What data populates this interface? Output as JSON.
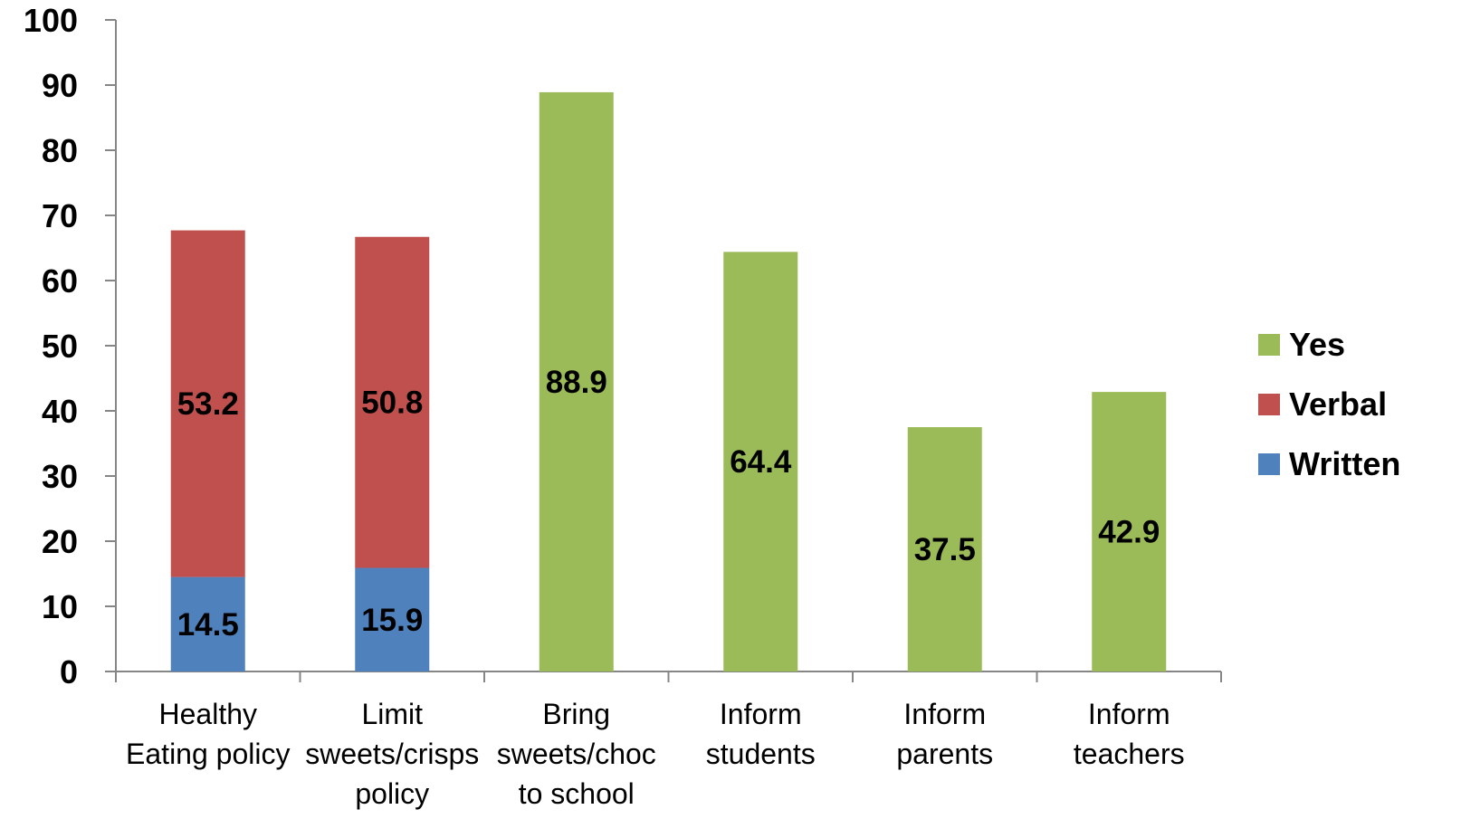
{
  "chart_data": {
    "type": "bar",
    "stacked": true,
    "categories": [
      [
        "Healthy",
        "Eating policy"
      ],
      [
        "Limit",
        "sweets/crisps",
        "policy"
      ],
      [
        "Bring",
        "sweets/choc",
        "to school"
      ],
      [
        "Inform",
        "students"
      ],
      [
        "Inform",
        "parents"
      ],
      [
        "Inform",
        "teachers"
      ]
    ],
    "series": [
      {
        "name": "Written",
        "color": "#4F81BD",
        "values": [
          14.5,
          15.9,
          null,
          null,
          null,
          null
        ]
      },
      {
        "name": "Verbal",
        "color": "#C0504D",
        "values": [
          53.2,
          50.8,
          null,
          null,
          null,
          null
        ]
      },
      {
        "name": "Yes",
        "color": "#9BBB59",
        "values": [
          null,
          null,
          88.9,
          64.4,
          37.5,
          42.9
        ]
      }
    ],
    "data_labels": [
      [
        "14.5",
        "15.9",
        "",
        "",
        "",
        ""
      ],
      [
        "53.2",
        "50.8",
        "",
        "",
        "",
        ""
      ],
      [
        "",
        "",
        "88.9",
        "64.4",
        "37.5",
        "42.9"
      ]
    ],
    "ylim": [
      0,
      100
    ],
    "yticks": [
      0,
      10,
      20,
      30,
      40,
      50,
      60,
      70,
      80,
      90,
      100
    ],
    "legend": {
      "position": "right",
      "order": [
        "Yes",
        "Verbal",
        "Written"
      ]
    },
    "grid": false,
    "title": "",
    "xlabel": "",
    "ylabel": ""
  }
}
